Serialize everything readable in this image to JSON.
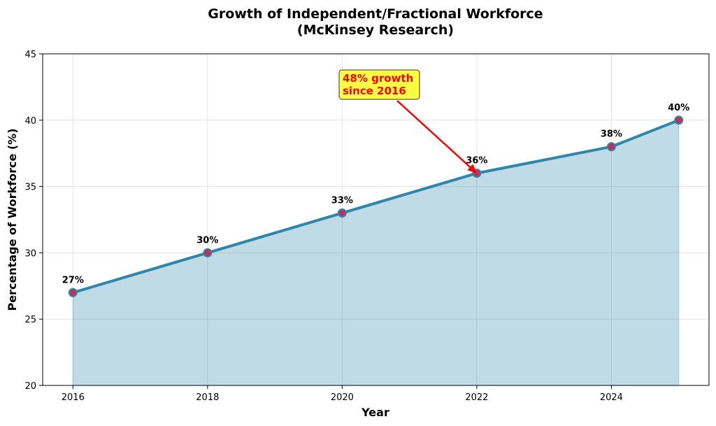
{
  "chart_data": {
    "type": "area",
    "title": "Growth of Independent/Fractional Workforce",
    "subtitle": "(McKinsey Research)",
    "xlabel": "Year",
    "ylabel": "Percentage of Workforce (%)",
    "x": [
      2016,
      2018,
      2020,
      2022,
      2024,
      2025
    ],
    "values": [
      27,
      30,
      33,
      36,
      38,
      40
    ],
    "data_labels": [
      "27%",
      "30%",
      "33%",
      "36%",
      "38%",
      "40%"
    ],
    "xlim": [
      2015.55,
      2025.45
    ],
    "ylim": [
      20,
      45
    ],
    "x_ticks": [
      2016,
      2018,
      2020,
      2022,
      2024
    ],
    "y_ticks": [
      20,
      25,
      30,
      35,
      40,
      45
    ],
    "grid": true,
    "annotation": {
      "text_line1": "48% growth",
      "text_line2": "since 2016",
      "target_x": 2022,
      "target_y": 36
    },
    "colors": {
      "line": "#2e86ab",
      "fill": "#2e86ab",
      "marker": "#c0305a",
      "arrow": "#ff0000",
      "annotation_box": "#ffff44"
    }
  }
}
